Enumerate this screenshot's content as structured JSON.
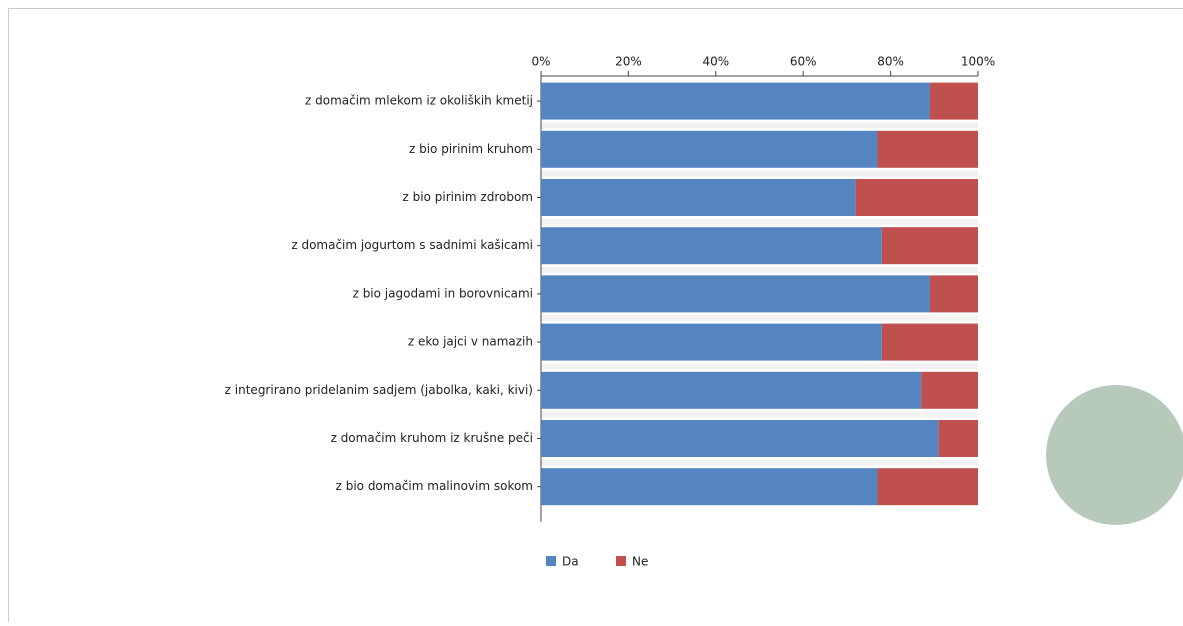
{
  "chart_data": {
    "type": "stacked-bar-horizontal",
    "categories": [
      "z domačim mlekom iz okoliških kmetij",
      "z bio pirinim kruhom",
      "z bio pirinim zdrobom",
      "z domačim jogurtom s sadnimi kašicami",
      "z bio jagodami in borovnicami",
      "z eko jajci v namazih",
      "z integrirano pridelanim sadjem (jabolka, kaki, kivi)",
      "z domačim kruhom iz krušne peči",
      "z bio domačim malinovim sokom"
    ],
    "series": [
      {
        "name": "Da",
        "color": "#5585c0",
        "values": [
          89,
          77,
          72,
          78,
          89,
          78,
          87,
          91,
          77
        ]
      },
      {
        "name": "Ne",
        "color": "#c0504d",
        "values": [
          11,
          23,
          28,
          22,
          11,
          22,
          13,
          9,
          23
        ]
      }
    ],
    "xlim": [
      0,
      100
    ],
    "xticks": [
      {
        "value": 0,
        "label": "0%"
      },
      {
        "value": 20,
        "label": "20%"
      },
      {
        "value": 40,
        "label": "40%"
      },
      {
        "value": 60,
        "label": "60%"
      },
      {
        "value": 80,
        "label": "80%"
      },
      {
        "value": 100,
        "label": "100%"
      }
    ],
    "legend": "bottom"
  }
}
